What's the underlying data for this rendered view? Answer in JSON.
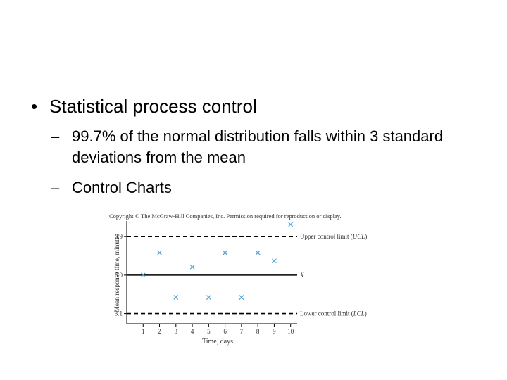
{
  "bullets": {
    "level1": "Statistical process control",
    "level2": [
      "99.7% of the normal distribution falls within 3 standard deviations from the mean",
      "Control Charts"
    ]
  },
  "figure": {
    "copyright": "Copyright © The McGraw-Hill Companies, Inc. Permission required for reproduction or display."
  },
  "chart_data": {
    "type": "scatter",
    "xlabel": "Time, days",
    "ylabel": "Mean response time, minutes",
    "x_ticks": [
      1,
      2,
      3,
      4,
      5,
      6,
      7,
      8,
      9,
      10
    ],
    "y_ticks": [
      3.1,
      5.0,
      6.9
    ],
    "xlim": [
      0,
      10.4
    ],
    "ylim": [
      2.6,
      7.6
    ],
    "points": [
      {
        "x": 1,
        "y": 5.0
      },
      {
        "x": 2,
        "y": 6.1
      },
      {
        "x": 3,
        "y": 3.9
      },
      {
        "x": 4,
        "y": 5.4
      },
      {
        "x": 5,
        "y": 3.9
      },
      {
        "x": 6,
        "y": 6.1
      },
      {
        "x": 7,
        "y": 3.9
      },
      {
        "x": 8,
        "y": 6.1
      },
      {
        "x": 9,
        "y": 5.7
      },
      {
        "x": 10,
        "y": 7.5
      }
    ],
    "lines": [
      {
        "label_prefix": "Upper control limit (",
        "label_italic": "UCL",
        "label_suffix": ")",
        "y": 6.9,
        "style": "dashed"
      },
      {
        "label_prefix": "",
        "label_italic": "X̄",
        "label_suffix": "",
        "y": 5.0,
        "style": "solid"
      },
      {
        "label_prefix": "Lower control limit (",
        "label_italic": "LCL",
        "label_suffix": ")",
        "y": 3.1,
        "style": "dashed"
      }
    ],
    "marker_color": "#4a9fd0",
    "line_color": "#000000"
  }
}
